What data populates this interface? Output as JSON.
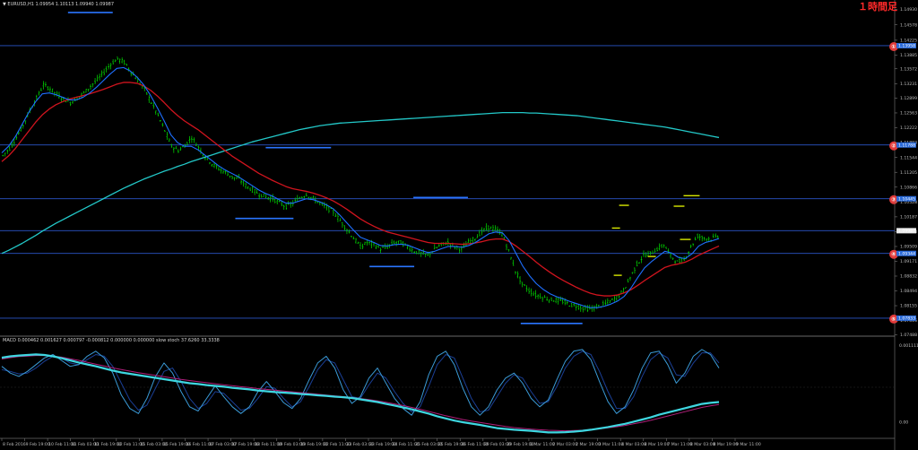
{
  "header": {
    "symbol_line": "▼ EURUSD,H1  1.09954 1.10113 1.09940 1.09987",
    "macd_line": "MACD 0.000462 0.001627 0.000797 -0.000812 0.000000 0.000000 slow stoch 37.6260 33.3338",
    "timeframe_badge": "１時間足"
  },
  "colors": {
    "background": "#000000",
    "candle": "#00e000",
    "ma_fast": "#1e6fff",
    "ma_mid": "#d0141e",
    "ma_slow": "#23c8c8",
    "hline": "#2a55c8",
    "marker_blue": "#2a75ff",
    "marker_yellow": "#d8e800",
    "circle": "#e23b3b"
  },
  "chart_data": [
    {
      "type": "line",
      "subtype": "candlestick-ohlc",
      "title": "EURUSD,H1",
      "ylim": [
        1.0752,
        1.1494
      ],
      "y_ticks": [
        "1.14930",
        "1.14578",
        "1.14225",
        "1.13885",
        "1.13572",
        "1.13231",
        "1.12899",
        "1.12563",
        "1.12222",
        "1.11883",
        "1.11544",
        "1.11205",
        "1.10866",
        "1.10528",
        "1.10187",
        "1.09848",
        "1.09509",
        "1.09171",
        "1.08832",
        "1.08494",
        "1.08155",
        "1.07816",
        "1.07488"
      ],
      "x_ticks": [
        "8 Feb 2016",
        "9 Feb 19:00",
        "10 Feb 11:00",
        "11 Feb 03:00",
        "11 Feb 19:00",
        "12 Feb 11:00",
        "15 Feb 03:00",
        "15 Feb 19:00",
        "16 Feb 11:00",
        "17 Feb 03:00",
        "17 Feb 19:00",
        "18 Feb 11:00",
        "19 Feb 03:00",
        "19 Feb 19:00",
        "22 Feb 11:00",
        "23 Feb 03:00",
        "23 Feb 19:00",
        "24 Feb 11:00",
        "25 Feb 03:00",
        "25 Feb 19:00",
        "26 Feb 11:00",
        "29 Feb 03:00",
        "29 Feb 19:00",
        "1 Mar 11:00",
        "2 Mar 03:00",
        "2 Mar 19:00",
        "3 Mar 11:00",
        "4 Mar 03:00",
        "4 Mar 19:00",
        "7 Mar 11:00",
        "8 Mar 03:00",
        "8 Mar 19:00",
        "9 Mar 11:00"
      ],
      "close": [
        1.1159,
        1.1175,
        1.12,
        1.1228,
        1.1262,
        1.129,
        1.132,
        1.1312,
        1.1298,
        1.1288,
        1.128,
        1.129,
        1.1302,
        1.1318,
        1.1332,
        1.135,
        1.1368,
        1.138,
        1.1372,
        1.135,
        1.133,
        1.131,
        1.128,
        1.125,
        1.1215,
        1.118,
        1.117,
        1.1182,
        1.12,
        1.1178,
        1.1156,
        1.114,
        1.1128,
        1.112,
        1.111,
        1.1105,
        1.109,
        1.108,
        1.107,
        1.1065,
        1.106,
        1.105,
        1.1042,
        1.105,
        1.1062,
        1.107,
        1.106,
        1.105,
        1.104,
        1.103,
        1.101,
        1.099,
        1.097,
        1.095,
        1.096,
        1.0955,
        1.0945,
        1.095,
        1.096,
        1.096,
        1.095,
        1.094,
        1.0935,
        1.093,
        1.0945,
        1.0955,
        1.096,
        1.095,
        1.0945,
        1.096,
        1.097,
        1.0985,
        1.0995,
        1.099,
        1.098,
        1.094,
        1.0895,
        1.0865,
        1.085,
        1.084,
        1.0835,
        1.083,
        1.0828,
        1.0825,
        1.0818,
        1.0815,
        1.081,
        1.0808,
        1.0812,
        1.0818,
        1.0825,
        1.0835,
        1.085,
        1.088,
        1.091,
        1.093,
        1.0935,
        1.0945,
        1.0955,
        1.093,
        1.0915,
        1.092,
        1.095,
        1.0975,
        1.097,
        1.0968,
        1.0975
      ],
      "ma_fast": [
        1.1165,
        1.118,
        1.1202,
        1.123,
        1.1258,
        1.1282,
        1.13,
        1.1302,
        1.1298,
        1.1292,
        1.1286,
        1.1286,
        1.1292,
        1.1302,
        1.1315,
        1.133,
        1.1345,
        1.1358,
        1.136,
        1.1352,
        1.1338,
        1.132,
        1.1296,
        1.1268,
        1.1238,
        1.1206,
        1.1188,
        1.118,
        1.118,
        1.1172,
        1.116,
        1.1148,
        1.1136,
        1.1126,
        1.1118,
        1.111,
        1.11,
        1.109,
        1.108,
        1.1072,
        1.1066,
        1.1058,
        1.105,
        1.105,
        1.1055,
        1.106,
        1.1058,
        1.1053,
        1.1046,
        1.1037,
        1.1022,
        1.1005,
        1.0988,
        1.0972,
        1.0966,
        1.096,
        1.0953,
        1.0952,
        1.0955,
        1.0956,
        1.0954,
        1.0948,
        1.0942,
        1.0937,
        1.094,
        1.0946,
        1.0951,
        1.0951,
        1.0949,
        1.0953,
        1.096,
        1.097,
        1.098,
        1.0984,
        1.0982,
        1.0964,
        1.0935,
        1.0906,
        1.0884,
        1.0866,
        1.0853,
        1.0843,
        1.0836,
        1.0831,
        1.0825,
        1.082,
        1.0815,
        1.0811,
        1.0811,
        1.0814,
        1.0819,
        1.0826,
        1.0837,
        1.0856,
        1.088,
        1.0902,
        1.0916,
        1.0928,
        1.094,
        1.0936,
        1.0926,
        1.0923,
        1.0934,
        1.0952,
        1.096,
        1.0964,
        1.0969
      ],
      "ma_mid": [
        1.1145,
        1.1158,
        1.1175,
        1.1195,
        1.1215,
        1.1235,
        1.1252,
        1.1265,
        1.1275,
        1.1282,
        1.1288,
        1.1292,
        1.1296,
        1.13,
        1.1305,
        1.131,
        1.1316,
        1.1322,
        1.1326,
        1.1326,
        1.1324,
        1.1318,
        1.1308,
        1.1295,
        1.128,
        1.1264,
        1.125,
        1.1238,
        1.1228,
        1.1218,
        1.1206,
        1.1194,
        1.1182,
        1.117,
        1.1158,
        1.1148,
        1.1138,
        1.1128,
        1.1118,
        1.111,
        1.1102,
        1.1095,
        1.1088,
        1.1083,
        1.108,
        1.1077,
        1.1073,
        1.1068,
        1.1062,
        1.1055,
        1.1046,
        1.1036,
        1.1025,
        1.1014,
        1.1005,
        1.0997,
        1.099,
        1.0984,
        1.098,
        1.0976,
        1.0972,
        1.0968,
        1.0964,
        1.096,
        1.0958,
        1.0958,
        1.0958,
        1.0957,
        1.0956,
        1.0957,
        1.0959,
        1.0962,
        1.0966,
        1.0968,
        1.0968,
        1.0962,
        1.0952,
        1.094,
        1.0928,
        1.0915,
        1.0903,
        1.0892,
        1.0882,
        1.0873,
        1.0865,
        1.0857,
        1.085,
        1.0844,
        1.084,
        1.0838,
        1.0838,
        1.084,
        1.0845,
        1.0852,
        1.0862,
        1.0873,
        1.0883,
        1.0893,
        1.0903,
        1.0908,
        1.0911,
        1.0915,
        1.0922,
        1.0931,
        1.0938,
        1.0945,
        1.0952
      ],
      "ma_slow": [
        1.0935,
        1.0942,
        1.095,
        1.0958,
        1.0967,
        1.0976,
        1.0986,
        1.0995,
        1.1004,
        1.1012,
        1.102,
        1.1028,
        1.1036,
        1.1044,
        1.1052,
        1.106,
        1.1068,
        1.1076,
        1.1084,
        1.1091,
        1.1098,
        1.1105,
        1.1111,
        1.1117,
        1.1123,
        1.1128,
        1.1134,
        1.1139,
        1.1145,
        1.115,
        1.1155,
        1.116,
        1.1165,
        1.117,
        1.1175,
        1.118,
        1.1185,
        1.119,
        1.1194,
        1.1198,
        1.1202,
        1.1206,
        1.121,
        1.1214,
        1.1218,
        1.1221,
        1.1224,
        1.1227,
        1.1229,
        1.1231,
        1.1233,
        1.1234,
        1.1235,
        1.1236,
        1.1237,
        1.1238,
        1.1239,
        1.124,
        1.1241,
        1.1242,
        1.1243,
        1.1244,
        1.1245,
        1.1246,
        1.1247,
        1.1248,
        1.1249,
        1.125,
        1.1251,
        1.1252,
        1.1253,
        1.1254,
        1.1255,
        1.1256,
        1.1257,
        1.1257,
        1.1257,
        1.1257,
        1.1256,
        1.1256,
        1.1255,
        1.1254,
        1.1253,
        1.1252,
        1.1251,
        1.125,
        1.1248,
        1.1246,
        1.1244,
        1.1242,
        1.124,
        1.1238,
        1.1236,
        1.1234,
        1.1232,
        1.123,
        1.1228,
        1.1226,
        1.1224,
        1.1221,
        1.1218,
        1.1215,
        1.1212,
        1.1209,
        1.1206,
        1.1203,
        1.12
      ],
      "horizontal_levels": [
        1.141,
        1.1183,
        1.106,
        1.0987,
        1.0935,
        1.0787
      ],
      "level_labels": [
        "1.13958",
        "1.11788",
        "1.10445",
        "1.09987",
        "1.09344",
        "1.07833"
      ],
      "circle_markers": [
        {
          "label": "①",
          "y": 1.141
        },
        {
          "label": "②",
          "y": 1.1183
        },
        {
          "label": "③",
          "y": 1.106
        },
        {
          "label": "④",
          "y": 1.0935
        },
        {
          "label": "⑤",
          "y": 1.0787
        }
      ],
      "blue_segments": [
        {
          "x0": 0.076,
          "x1": 0.126,
          "y": 1.1486
        },
        {
          "x0": 0.297,
          "x1": 0.37,
          "y": 1.1177
        },
        {
          "x0": 0.263,
          "x1": 0.328,
          "y": 1.1015
        },
        {
          "x0": 0.413,
          "x1": 0.463,
          "y": 1.0905
        },
        {
          "x0": 0.462,
          "x1": 0.523,
          "y": 1.1063
        },
        {
          "x0": 0.582,
          "x1": 0.651,
          "y": 1.0775
        }
      ],
      "yellow_segments": [
        {
          "x0": 0.692,
          "x1": 0.703,
          "y": 1.1045
        },
        {
          "x0": 0.684,
          "x1": 0.693,
          "y": 1.0993
        },
        {
          "x0": 0.686,
          "x1": 0.695,
          "y": 1.0885
        },
        {
          "x0": 0.724,
          "x1": 0.733,
          "y": 1.0928
        },
        {
          "x0": 0.753,
          "x1": 0.765,
          "y": 1.1043
        },
        {
          "x0": 0.764,
          "x1": 0.782,
          "y": 1.1067
        },
        {
          "x0": 0.76,
          "x1": 0.772,
          "y": 1.0967
        }
      ]
    },
    {
      "type": "line",
      "title": "MACD / slow stoch",
      "ylim": [
        -0.0018,
        0.0016
      ],
      "y_ticks": [
        "0.001111",
        "0.00"
      ],
      "macd_main": [
        0.0011,
        0.00115,
        0.00118,
        0.0012,
        0.00122,
        0.0012,
        0.00115,
        0.00108,
        0.001,
        0.00092,
        0.00085,
        0.00078,
        0.0007,
        0.00062,
        0.00055,
        0.0005,
        0.00045,
        0.0004,
        0.00035,
        0.0003,
        0.00025,
        0.0002,
        0.00015,
        0.00012,
        8e-05,
        5e-05,
        2e-05,
        -2e-05,
        -5e-05,
        -8e-05,
        -0.00012,
        -0.00015,
        -0.00018,
        -0.0002,
        -0.00022,
        -0.00025,
        -0.00027,
        -0.0003,
        -0.00032,
        -0.00035,
        -0.00037,
        -0.0004,
        -0.00045,
        -0.0005,
        -0.00055,
        -0.00062,
        -0.00068,
        -0.00075,
        -0.00082,
        -0.0009,
        -0.00098,
        -0.00108,
        -0.00116,
        -0.00124,
        -0.0013,
        -0.00135,
        -0.0014,
        -0.00146,
        -0.00152,
        -0.00155,
        -0.00158,
        -0.0016,
        -0.00162,
        -0.00165,
        -0.00168,
        -0.00168,
        -0.00167,
        -0.00165,
        -0.00162,
        -0.00158,
        -0.00153,
        -0.00148,
        -0.00142,
        -0.00136,
        -0.00128,
        -0.0012,
        -0.00112,
        -0.00102,
        -0.00094,
        -0.00086,
        -0.00078,
        -0.0007,
        -0.00062,
        -0.00058,
        -0.00055
      ],
      "macd_signal": [
        0.00105,
        0.0011,
        0.00114,
        0.00116,
        0.00118,
        0.00118,
        0.00116,
        0.00112,
        0.00106,
        0.001,
        0.00093,
        0.00086,
        0.00079,
        0.00072,
        0.00066,
        0.0006,
        0.00054,
        0.00049,
        0.00044,
        0.00039,
        0.00034,
        0.00029,
        0.00025,
        0.00021,
        0.00017,
        0.00013,
        9e-05,
        6e-05,
        2e-05,
        -1e-05,
        -5e-05,
        -8e-05,
        -0.00011,
        -0.00014,
        -0.00017,
        -0.0002,
        -0.00023,
        -0.00026,
        -0.00029,
        -0.00032,
        -0.00035,
        -0.00038,
        -0.00042,
        -0.00046,
        -0.00051,
        -0.00056,
        -0.00062,
        -0.00068,
        -0.00075,
        -0.00082,
        -0.0009,
        -0.00098,
        -0.00106,
        -0.00113,
        -0.0012,
        -0.00126,
        -0.00131,
        -0.00136,
        -0.00141,
        -0.00146,
        -0.0015,
        -0.00153,
        -0.00156,
        -0.00158,
        -0.0016,
        -0.00161,
        -0.00162,
        -0.00161,
        -0.0016,
        -0.00158,
        -0.00155,
        -0.00151,
        -0.00147,
        -0.00142,
        -0.00136,
        -0.0013,
        -0.00123,
        -0.00115,
        -0.00107,
        -0.00099,
        -0.00091,
        -0.00083,
        -0.00075,
        -0.00069,
        -0.00064
      ],
      "stoch_main": [
        78,
        70,
        66,
        72,
        80,
        88,
        92,
        85,
        78,
        80,
        90,
        96,
        88,
        70,
        44,
        28,
        22,
        40,
        66,
        82,
        70,
        48,
        30,
        25,
        40,
        55,
        42,
        30,
        22,
        30,
        48,
        60,
        48,
        35,
        28,
        40,
        62,
        82,
        90,
        76,
        50,
        34,
        42,
        64,
        76,
        58,
        40,
        28,
        20,
        36,
        68,
        90,
        96,
        80,
        52,
        30,
        20,
        30,
        50,
        64,
        70,
        58,
        40,
        30,
        38,
        62,
        84,
        96,
        98,
        86,
        60,
        36,
        22,
        30,
        50,
        76,
        94,
        96,
        80,
        58,
        70,
        90,
        98,
        92,
        76
      ],
      "stoch_signal": [
        74,
        72,
        69,
        70,
        76,
        84,
        90,
        88,
        82,
        80,
        86,
        92,
        90,
        78,
        58,
        38,
        26,
        32,
        52,
        72,
        76,
        60,
        40,
        28,
        34,
        48,
        46,
        36,
        26,
        28,
        40,
        54,
        52,
        40,
        30,
        36,
        54,
        74,
        86,
        82,
        62,
        42,
        40,
        56,
        70,
        64,
        48,
        34,
        24,
        30,
        54,
        80,
        92,
        88,
        64,
        40,
        24,
        26,
        42,
        58,
        68,
        64,
        48,
        34,
        36,
        54,
        76,
        90,
        96,
        92,
        72,
        48,
        28,
        28,
        42,
        66,
        86,
        94,
        88,
        68,
        66,
        82,
        94,
        94,
        82
      ]
    }
  ]
}
